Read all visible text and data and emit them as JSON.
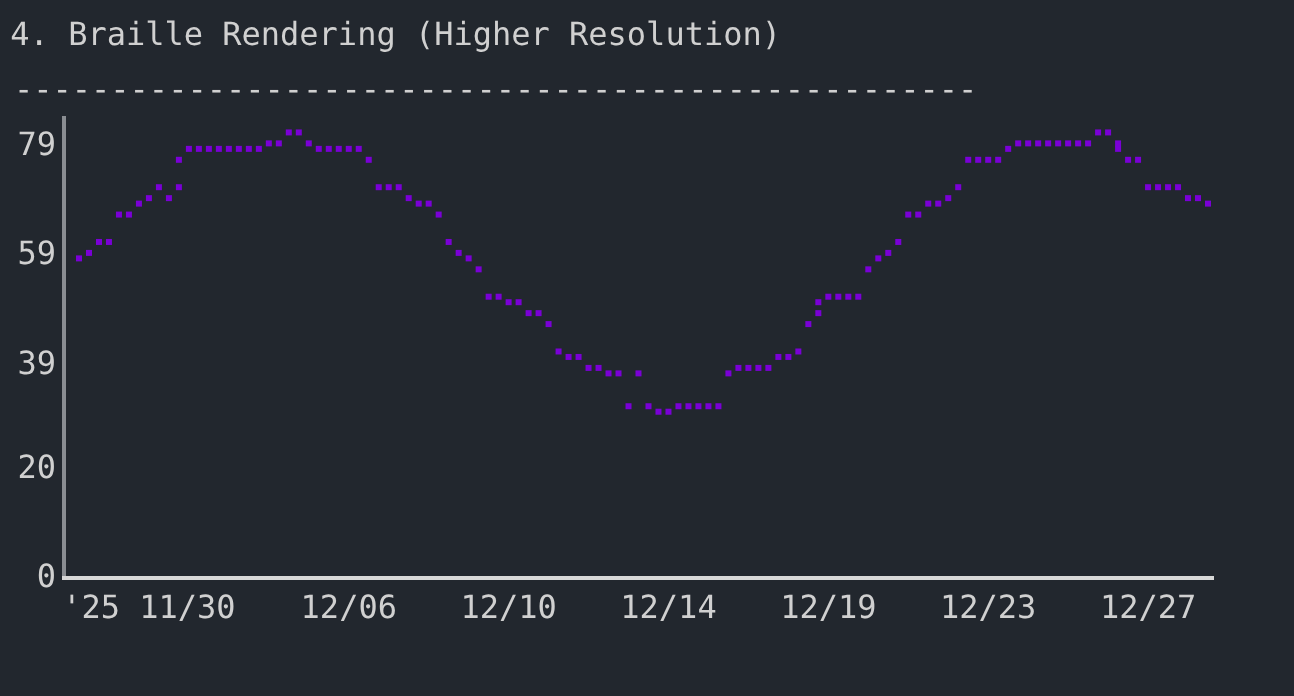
{
  "chart_data": {
    "type": "scatter",
    "title": "4. Braille Rendering (Higher Resolution)",
    "annotations": [
      "--------------------------------------------------"
    ],
    "categories": [
      null,
      null,
      null,
      null,
      null,
      null,
      null,
      "'25 11/30",
      null,
      null,
      null,
      null,
      null,
      null,
      null,
      null,
      null,
      null,
      null,
      null,
      null,
      null,
      null,
      null,
      null,
      null,
      null,
      "12/06",
      null,
      null,
      null,
      null,
      null,
      null,
      null,
      null,
      null,
      null,
      null,
      null,
      null,
      null,
      null,
      "12/10",
      null,
      null,
      null,
      null,
      null,
      null,
      null,
      null,
      null,
      null,
      null,
      null,
      null,
      null,
      null,
      "12/14",
      null,
      null,
      null,
      null,
      null,
      null,
      null,
      null,
      null,
      null,
      null,
      null,
      null,
      null,
      null,
      "12/19",
      null,
      null,
      null,
      null,
      null,
      null,
      null,
      null,
      null,
      null,
      null,
      null,
      null,
      null,
      null,
      "12/23",
      null,
      null,
      null,
      null,
      null,
      null,
      null,
      null,
      null,
      null,
      null,
      null,
      null,
      null,
      null,
      "12/27",
      null,
      null,
      null,
      null,
      null,
      null
    ],
    "series": [
      {
        "color": "#7a00d6",
        "values": [
          58,
          59,
          61,
          61,
          66,
          66,
          68,
          69,
          71,
          69,
          71,
          78,
          78,
          78,
          78,
          78,
          78,
          78,
          78,
          79,
          79,
          81,
          81,
          79,
          78,
          78,
          78,
          78,
          78,
          76,
          71,
          71,
          71,
          69,
          68,
          68,
          66,
          61,
          59,
          58,
          56,
          51,
          51,
          50,
          50,
          48,
          48,
          46,
          41,
          40,
          40,
          38,
          38,
          37,
          37,
          31,
          37,
          31,
          30,
          30,
          31,
          31,
          31,
          31,
          31,
          37,
          38,
          38,
          38,
          38,
          40,
          40,
          41,
          46,
          48,
          51,
          51,
          51,
          51,
          56,
          58,
          59,
          61,
          66,
          66,
          68,
          68,
          69,
          71,
          76,
          76,
          76,
          76,
          78,
          79,
          79,
          79,
          79,
          79,
          79,
          79,
          79,
          81,
          81,
          79,
          76,
          76,
          71,
          71,
          71,
          71,
          69,
          69,
          68
        ]
      },
      {
        "color": "#7a00d6",
        "values": [
          null,
          null,
          null,
          null,
          null,
          null,
          null,
          null,
          null,
          null,
          76,
          null,
          null,
          null,
          null,
          null,
          null,
          null,
          null,
          null,
          null,
          null,
          null,
          null,
          null,
          null,
          null,
          null,
          null,
          null,
          null,
          null,
          null,
          null,
          null,
          null,
          null,
          null,
          null,
          null,
          null,
          null,
          null,
          null,
          null,
          null,
          null,
          null,
          null,
          null,
          null,
          null,
          null,
          null,
          null,
          null,
          null,
          null,
          null,
          null,
          null,
          null,
          null,
          null,
          null,
          null,
          null,
          null,
          null,
          null,
          null,
          null,
          null,
          null,
          50,
          null,
          null,
          null,
          null,
          null,
          null,
          null,
          null,
          null,
          null,
          null,
          null,
          null,
          null,
          null,
          null,
          null,
          null,
          null,
          null,
          null,
          null,
          null,
          null,
          null,
          null,
          null,
          null,
          null,
          78,
          null,
          null,
          null,
          null,
          null,
          null,
          null,
          null,
          null
        ]
      }
    ],
    "ylim": [
      0,
      84
    ],
    "yticks": [
      0,
      20,
      39,
      59,
      79
    ],
    "marker": "square",
    "grid": false
  }
}
